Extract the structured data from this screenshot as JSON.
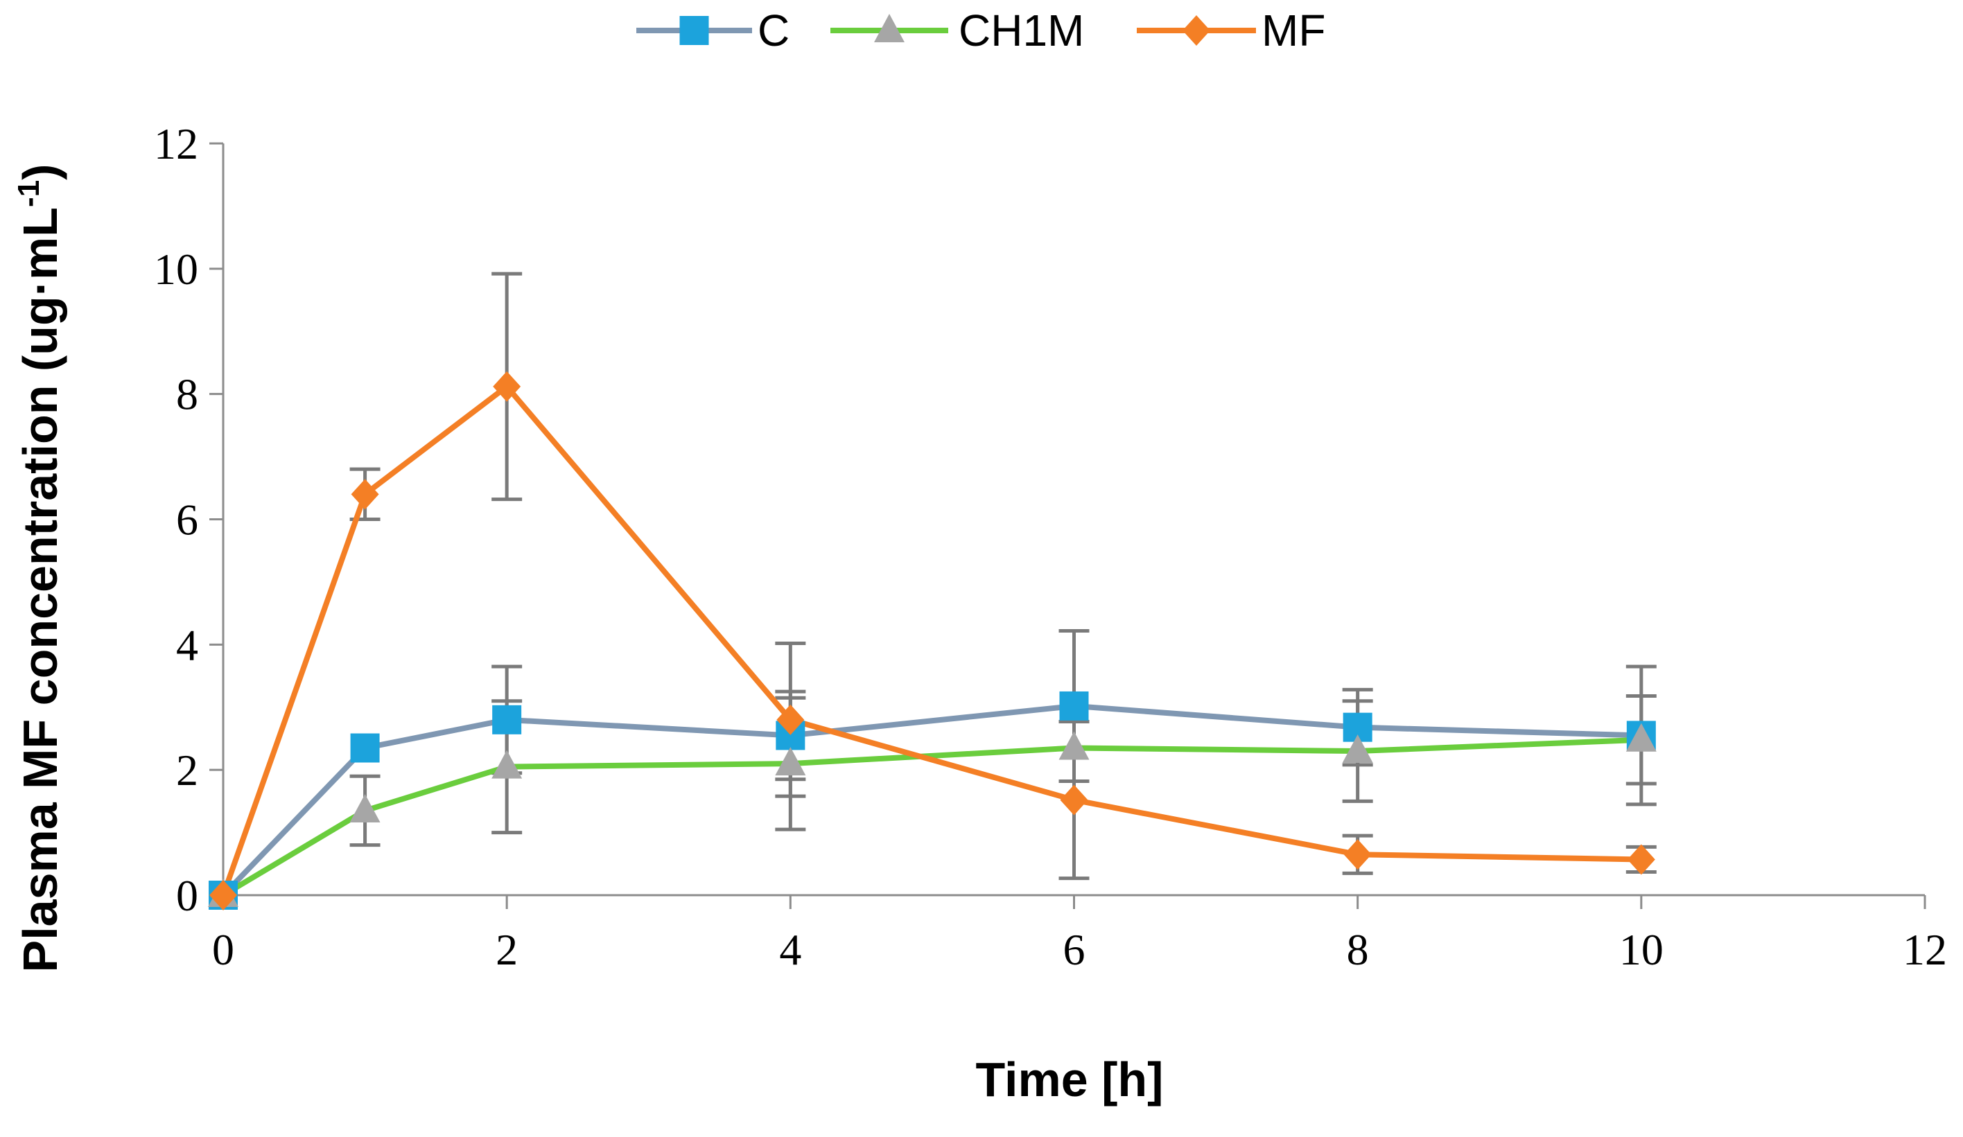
{
  "chart_data": {
    "type": "line",
    "title": "",
    "xlabel": "Time [h]",
    "ylabel_main": "Plasma MF concentration (ug·mL",
    "ylabel_sup": "-1",
    "ylabel_end": ")",
    "xlim": [
      0,
      12
    ],
    "ylim": [
      0,
      12
    ],
    "xticks": [
      0,
      2,
      4,
      6,
      8,
      10,
      12
    ],
    "yticks": [
      0,
      2,
      4,
      6,
      8,
      10,
      12
    ],
    "grid": false,
    "legend_position": "top-center",
    "x": [
      0,
      1,
      2,
      4,
      6,
      8,
      10
    ],
    "series": [
      {
        "name": "C",
        "color": "#7f97b2",
        "marker": "square",
        "marker_color": "#1ca3dc",
        "values": [
          0,
          2.35,
          2.8,
          2.55,
          3.02,
          2.68,
          2.55
        ],
        "errors": [
          0,
          0,
          0.85,
          0.7,
          1.2,
          0.6,
          1.1
        ]
      },
      {
        "name": "CH1M",
        "color": "#6acd3d",
        "marker": "triangle",
        "marker_color": "#a6a6a6",
        "values": [
          0,
          1.35,
          2.05,
          2.1,
          2.35,
          2.3,
          2.48
        ],
        "errors": [
          0,
          0.55,
          1.05,
          1.05,
          0,
          0.8,
          0.7
        ]
      },
      {
        "name": "MF",
        "color": "#f47f25",
        "marker": "diamond",
        "marker_color": "#f47f25",
        "values": [
          0,
          6.4,
          8.12,
          2.8,
          1.52,
          0.65,
          0.57
        ],
        "errors": [
          0,
          0.4,
          1.8,
          1.22,
          1.25,
          0.3,
          0.2
        ]
      }
    ]
  }
}
